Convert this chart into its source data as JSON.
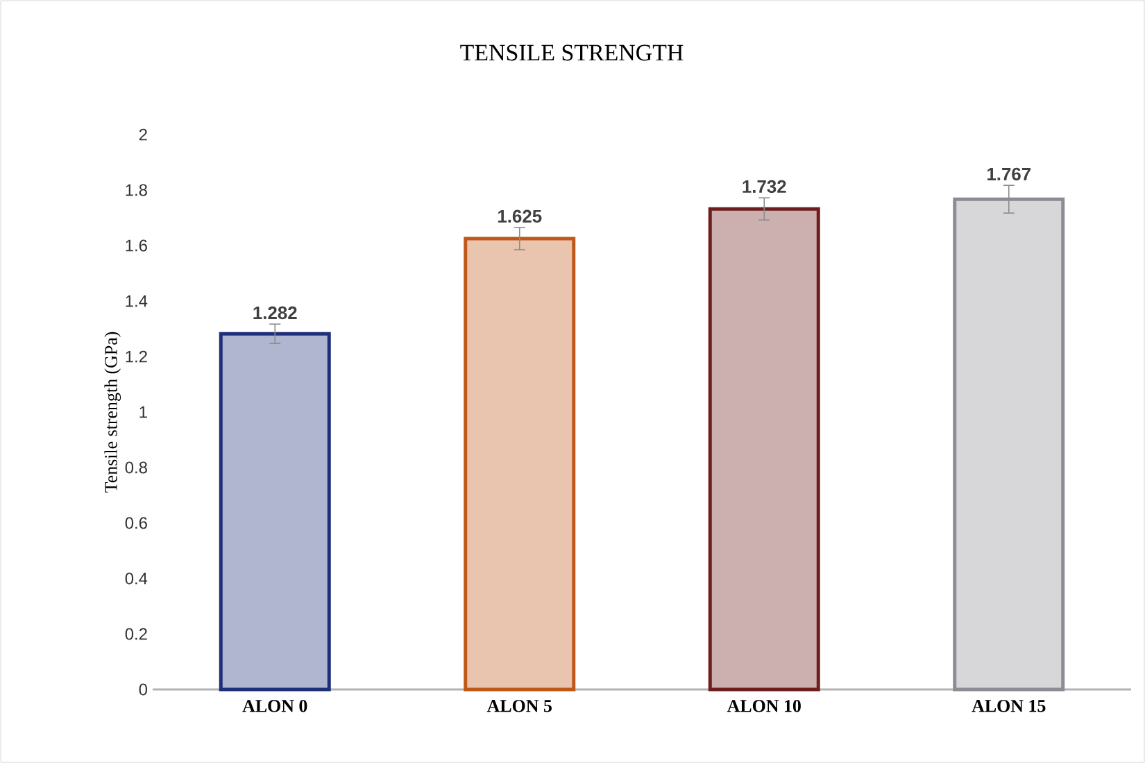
{
  "chart_data": {
    "type": "bar",
    "title": "TENSILE STRENGTH",
    "ylabel": "Tensile strength (GPa)",
    "categories": [
      "ALON 0",
      "ALON 5",
      "ALON 10",
      "ALON 15"
    ],
    "values": [
      1.282,
      1.625,
      1.732,
      1.767
    ],
    "errors": [
      0.035,
      0.04,
      0.04,
      0.05
    ],
    "colors": [
      "#1f2f7a",
      "#c0581a",
      "#6e1e1e",
      "#8c8c94"
    ],
    "ylim": [
      0,
      2
    ],
    "yticks": [
      0,
      0.2,
      0.4,
      0.6,
      0.8,
      1,
      1.2,
      1.4,
      1.6,
      1.8,
      2
    ],
    "data_labels": true
  }
}
